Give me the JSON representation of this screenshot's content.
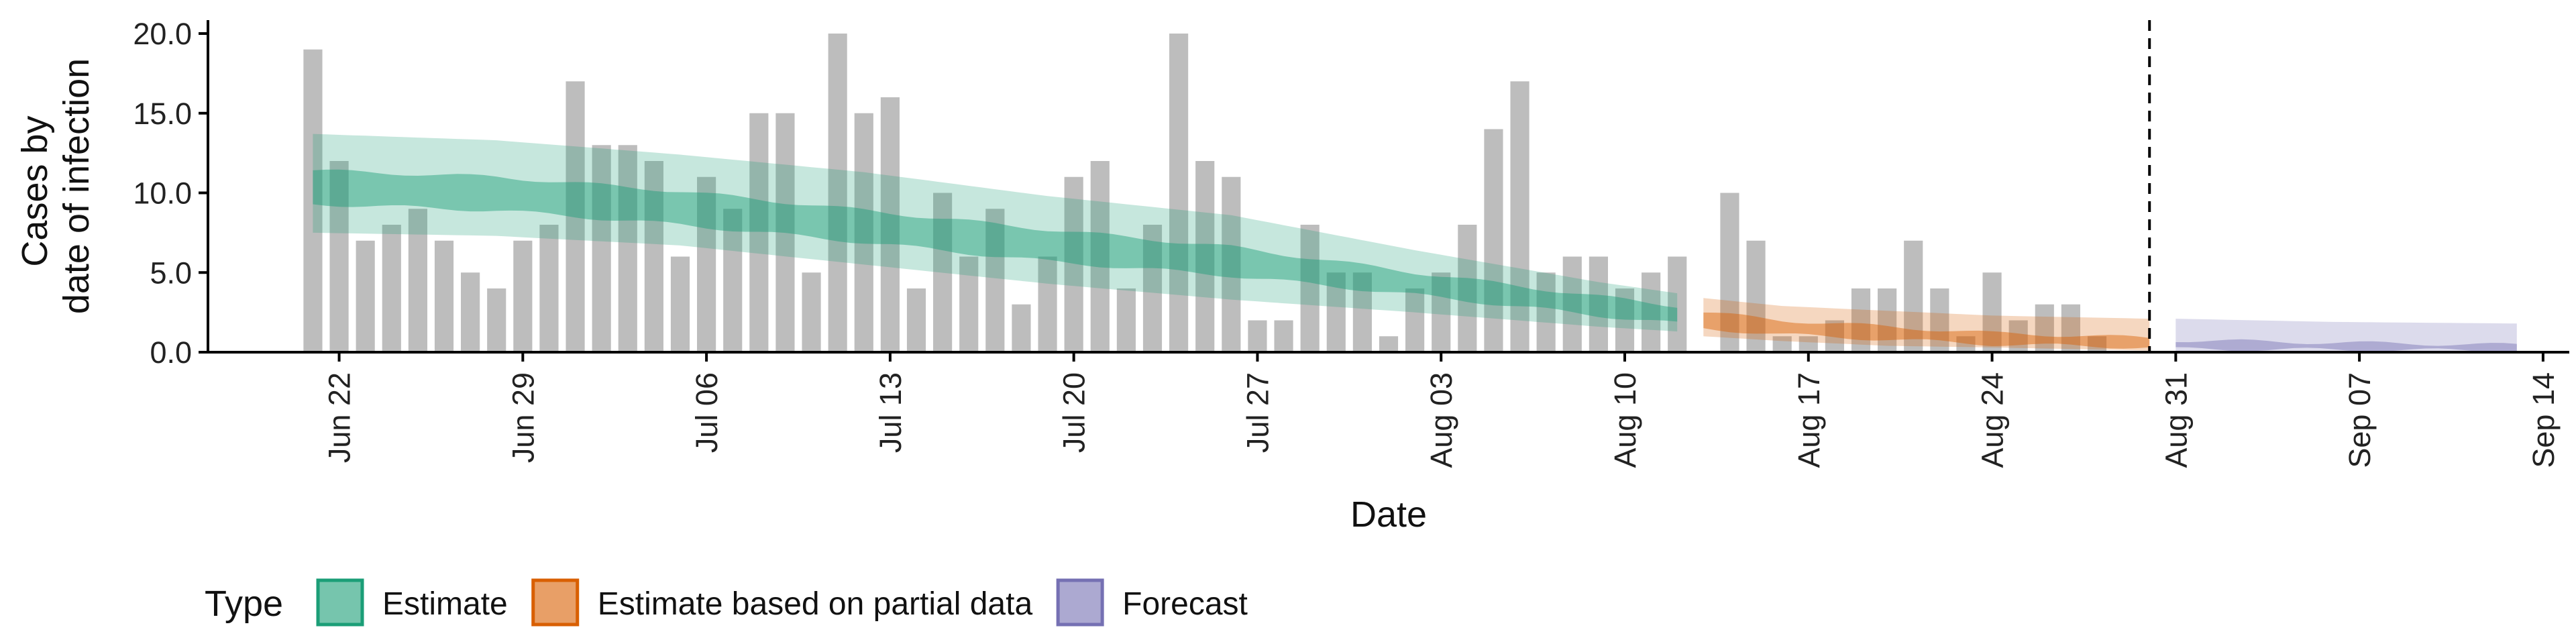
{
  "chart_data": {
    "type": "bar",
    "xlabel": "Date",
    "ylabel": [
      "Cases by",
      "date of infection"
    ],
    "ylim": [
      0,
      20
    ],
    "y_ticks": [
      0,
      5,
      10,
      15,
      20
    ],
    "y_tick_labels": [
      "0.0",
      "5.0",
      "10.0",
      "15.0",
      "20.0"
    ],
    "xlim": [
      "2020-06-17",
      "2020-09-15"
    ],
    "x_ticks": [
      "2020-06-22",
      "2020-06-29",
      "2020-07-06",
      "2020-07-13",
      "2020-07-20",
      "2020-07-27",
      "2020-08-03",
      "2020-08-10",
      "2020-08-17",
      "2020-08-24",
      "2020-08-31",
      "2020-09-07",
      "2020-09-14"
    ],
    "x_tick_labels": [
      "Jun 22",
      "Jun 29",
      "Jul 06",
      "Jul 13",
      "Jul 20",
      "Jul 27",
      "Aug 03",
      "Aug 10",
      "Aug 17",
      "Aug 24",
      "Aug 31",
      "Sep 07",
      "Sep 14"
    ],
    "vline_date": "2020-08-30",
    "grid": false,
    "legend": {
      "title": "Type",
      "position": "bottom-left",
      "entries": [
        {
          "label": "Estimate",
          "color": "#1b9e77"
        },
        {
          "label": "Estimate based on partial data",
          "color": "#d95f02"
        },
        {
          "label": "Forecast",
          "color": "#7570b3"
        }
      ]
    },
    "bars": {
      "color": "#bdbdbd",
      "start_date": "2020-06-21",
      "values": [
        19,
        12,
        7,
        8,
        9,
        7,
        5,
        4,
        7,
        8,
        17,
        13,
        13,
        12,
        6,
        11,
        9,
        15,
        15,
        5,
        20,
        15,
        16,
        4,
        10,
        6,
        9,
        3,
        6,
        11,
        12,
        4,
        8,
        20,
        12,
        11,
        2,
        2,
        8,
        5,
        5,
        1,
        4,
        5,
        8,
        14,
        17,
        5,
        6,
        6,
        4,
        5,
        6,
        0,
        10,
        7,
        1,
        1,
        2,
        4,
        4,
        7,
        4,
        1,
        5,
        2,
        3,
        3,
        1
      ]
    },
    "series": [
      {
        "name": "Estimate",
        "color": "#1b9e77",
        "dates": [
          "2020-06-21",
          "2020-06-28",
          "2020-07-05",
          "2020-07-12",
          "2020-07-19",
          "2020-07-26",
          "2020-08-02",
          "2020-08-09",
          "2020-08-12"
        ],
        "median": [
          10.4,
          10.0,
          9.1,
          7.9,
          6.7,
          5.7,
          4.3,
          2.9,
          2.3
        ],
        "inner_low": [
          9.3,
          8.9,
          8.0,
          6.9,
          5.7,
          4.8,
          3.6,
          2.3,
          1.8
        ],
        "inner_high": [
          11.4,
          11.0,
          10.1,
          8.9,
          7.7,
          6.6,
          5.0,
          3.5,
          2.9
        ],
        "outer_low": [
          7.5,
          7.3,
          6.7,
          5.5,
          4.3,
          3.3,
          2.5,
          1.6,
          1.3
        ],
        "outer_high": [
          13.7,
          13.3,
          12.4,
          11.3,
          9.8,
          8.6,
          6.4,
          4.4,
          3.7
        ]
      },
      {
        "name": "Estimate based on partial data",
        "color": "#d95f02",
        "dates": [
          "2020-08-13",
          "2020-08-16",
          "2020-08-20",
          "2020-08-24",
          "2020-08-30"
        ],
        "median": [
          2.0,
          1.5,
          1.2,
          0.8,
          0.5
        ],
        "inner_low": [
          1.5,
          1.1,
          0.8,
          0.5,
          0.3
        ],
        "inner_high": [
          2.5,
          2.0,
          1.6,
          1.2,
          0.9
        ],
        "outer_low": [
          1.0,
          0.7,
          0.4,
          0.3,
          0.1
        ],
        "outer_high": [
          3.4,
          2.9,
          2.6,
          2.3,
          2.1
        ]
      },
      {
        "name": "Forecast",
        "color": "#7570b3",
        "dates": [
          "2020-08-31",
          "2020-09-06",
          "2020-09-13"
        ],
        "median": [
          0.45,
          0.35,
          0.25
        ],
        "inner_low": [
          0.2,
          0.15,
          0.1
        ],
        "inner_high": [
          0.75,
          0.6,
          0.45
        ],
        "outer_low": [
          0.05,
          0.03,
          0.02
        ],
        "outer_high": [
          2.1,
          1.9,
          1.8
        ]
      }
    ]
  }
}
